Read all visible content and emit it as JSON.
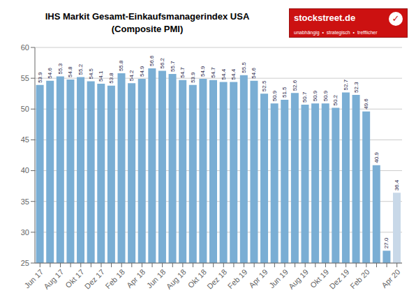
{
  "chart_data": {
    "type": "bar",
    "title": "IHS Markit Gesamt-Einkaufsmanagerindex USA",
    "subtitle": "(Composite PMI)",
    "categories": [
      "Jun 17",
      null,
      "Aug 17",
      null,
      "Okt 17",
      null,
      "Dez 17",
      null,
      "Feb 18",
      null,
      "Apr 18",
      null,
      "Jun 18",
      null,
      "Aug 18",
      null,
      "Okt 18",
      null,
      "Dez 18",
      null,
      "Feb 19",
      null,
      "Apr 19",
      null,
      "Jun 19",
      null,
      "Aug 19",
      null,
      "Okt 19",
      null,
      "Dez 19",
      null,
      "Feb 20",
      null,
      null,
      "Apr 20"
    ],
    "values": [
      53.9,
      54.6,
      55.3,
      54.8,
      55.2,
      54.5,
      54.1,
      53.8,
      55.8,
      54.2,
      54.9,
      56.6,
      56.2,
      55.7,
      54.7,
      53.9,
      54.9,
      54.7,
      54.4,
      54.4,
      55.5,
      54.6,
      52.5,
      50.9,
      51.5,
      52.6,
      50.7,
      50.9,
      50.9,
      50.2,
      52.7,
      52.3,
      49.6,
      40.9,
      27.0,
      36.4
    ],
    "value_labels": [
      "53.9",
      "54.6",
      "55.3",
      "54.8",
      "55.2",
      "54.5",
      "54.1",
      "53.8",
      "55.8",
      "54.2",
      "54.9",
      "56.6",
      "56.2",
      "55.7",
      "54.7",
      "53.9",
      "54.9",
      "54.7",
      "54.4",
      "54.4",
      "55.5",
      "54.6",
      "52.5",
      "50.9",
      "51.5",
      "52.6",
      "50.7",
      "50.9",
      "50.9",
      "50.2",
      "52.7",
      "52.3",
      "49.6",
      "40.9",
      "27.0",
      "36.4"
    ],
    "colors": [
      "#7aaed4",
      "#7aaed4",
      "#7aaed4",
      "#7aaed4",
      "#7aaed4",
      "#7aaed4",
      "#7aaed4",
      "#7aaed4",
      "#7aaed4",
      "#7aaed4",
      "#7aaed4",
      "#7aaed4",
      "#7aaed4",
      "#7aaed4",
      "#7aaed4",
      "#7aaed4",
      "#7aaed4",
      "#7aaed4",
      "#7aaed4",
      "#7aaed4",
      "#7aaed4",
      "#7aaed4",
      "#7aaed4",
      "#7aaed4",
      "#7aaed4",
      "#7aaed4",
      "#7aaed4",
      "#7aaed4",
      "#7aaed4",
      "#7aaed4",
      "#7aaed4",
      "#7aaed4",
      "#7aaed4",
      "#7aaed4",
      "#7aaed4",
      "#c8d8e8"
    ],
    "ylim": [
      25,
      60
    ],
    "yticks": [
      25,
      30,
      35,
      40,
      45,
      50,
      55,
      60
    ],
    "grid": true,
    "data_labels": true,
    "annotations": [
      "stockstreet.de",
      "✓",
      "unabhängig  •  strategisch  •  trefflicher"
    ]
  }
}
